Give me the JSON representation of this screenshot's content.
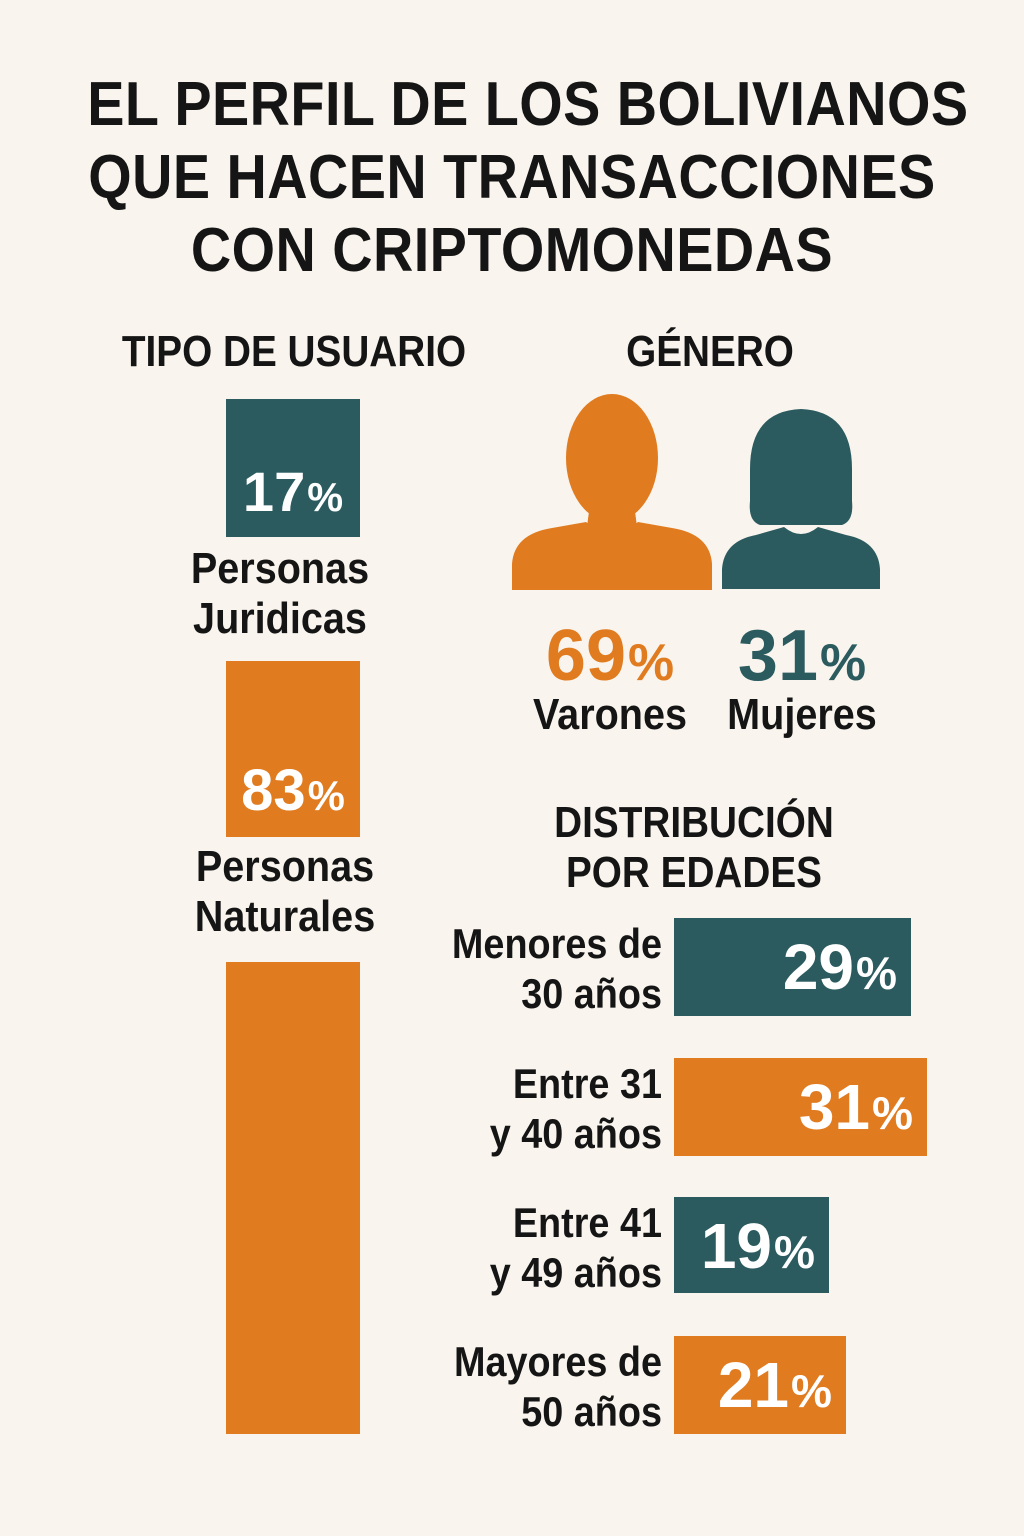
{
  "title": [
    "EL PERFIL DE LOS BOLIVIANOS",
    "QUE HACEN TRANSACCIONES",
    "CON CRIPTOMONEDAS"
  ],
  "colors": {
    "teal": "#2b5b5f",
    "orange": "#e07b20",
    "background": "#f9f5ee",
    "text": "#151515"
  },
  "user_type": {
    "heading": "TIPO DE USUARIO",
    "items": [
      {
        "value": "17",
        "symbol": "%",
        "label": [
          "Personas",
          "Juridicas"
        ],
        "color": "teal"
      },
      {
        "value": "83",
        "symbol": "%",
        "label": [
          "Personas",
          "Naturales"
        ],
        "color": "orange"
      }
    ]
  },
  "gender": {
    "heading": "GÉNERO",
    "items": [
      {
        "value": "69",
        "symbol": "%",
        "label": "Varones",
        "icon": "man-silhouette-icon",
        "color": "orange"
      },
      {
        "value": "31",
        "symbol": "%",
        "label": "Mujeres",
        "icon": "woman-silhouette-icon",
        "color": "teal"
      }
    ]
  },
  "age": {
    "heading": [
      "DISTRIBUCIÓN",
      "POR EDADES"
    ],
    "items": [
      {
        "label": [
          "Menores de",
          "30 años"
        ],
        "value": "29",
        "symbol": "%",
        "color": "teal"
      },
      {
        "label": [
          "Entre 31",
          "y 40 años"
        ],
        "value": "31",
        "symbol": "%",
        "color": "orange"
      },
      {
        "label": [
          "Entre 41",
          "y 49 años"
        ],
        "value": "19",
        "symbol": "%",
        "color": "teal"
      },
      {
        "label": [
          "Mayores de",
          "50 años"
        ],
        "value": "21",
        "symbol": "%",
        "color": "orange"
      }
    ]
  },
  "chart_data": [
    {
      "type": "bar",
      "title": "TIPO DE USUARIO",
      "categories": [
        "Personas Juridicas",
        "Personas Naturales"
      ],
      "values": [
        17,
        83
      ],
      "unit": "%"
    },
    {
      "type": "pictogram",
      "title": "GÉNERO",
      "categories": [
        "Varones",
        "Mujeres"
      ],
      "values": [
        69,
        31
      ],
      "unit": "%"
    },
    {
      "type": "bar",
      "title": "DISTRIBUCIÓN POR EDADES",
      "categories": [
        "Menores de 30 años",
        "Entre 31 y 40 años",
        "Entre 41 y 49 años",
        "Mayores de 50 años"
      ],
      "values": [
        29,
        31,
        19,
        21
      ],
      "unit": "%"
    }
  ]
}
